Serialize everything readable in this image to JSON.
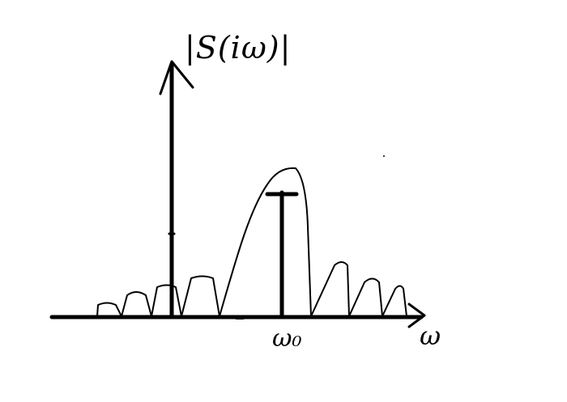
{
  "figure": {
    "y_axis_label": "|S(iω)|",
    "x_axis_label": "ω",
    "marker_label": "ω₀",
    "ink_color": "#000000",
    "background": "#ffffff"
  }
}
